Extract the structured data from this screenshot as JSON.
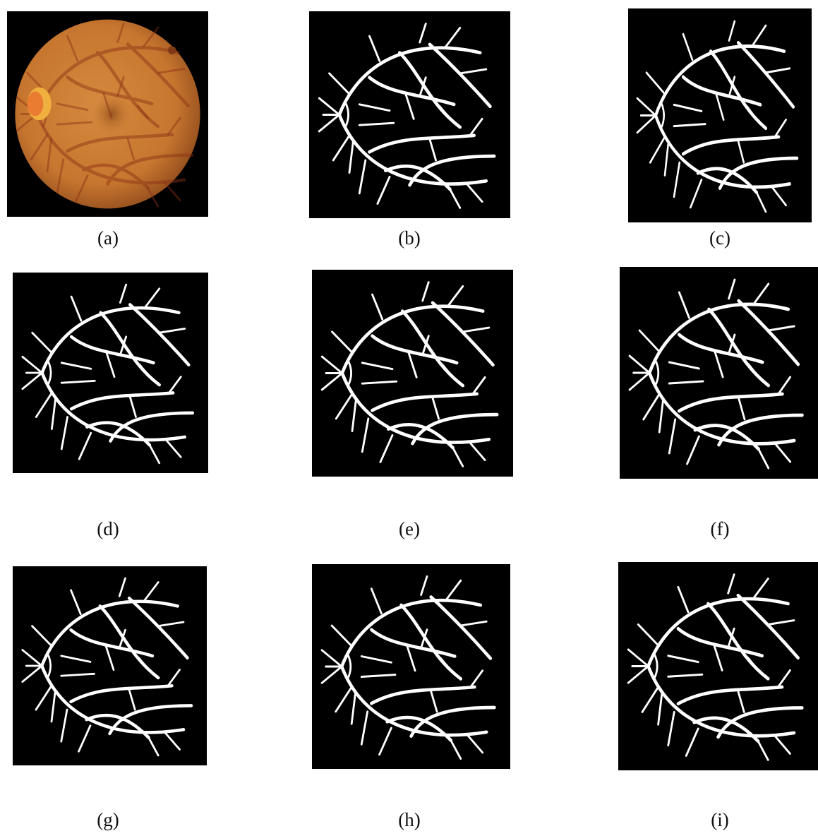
{
  "figure": {
    "panels": [
      {
        "label": "(a)"
      },
      {
        "label": "(b)"
      },
      {
        "label": "(c)"
      },
      {
        "label": "(d)"
      },
      {
        "label": "(e)"
      },
      {
        "label": "(f)"
      },
      {
        "label": "(g)"
      },
      {
        "label": "(h)"
      },
      {
        "label": "(i)"
      }
    ]
  }
}
